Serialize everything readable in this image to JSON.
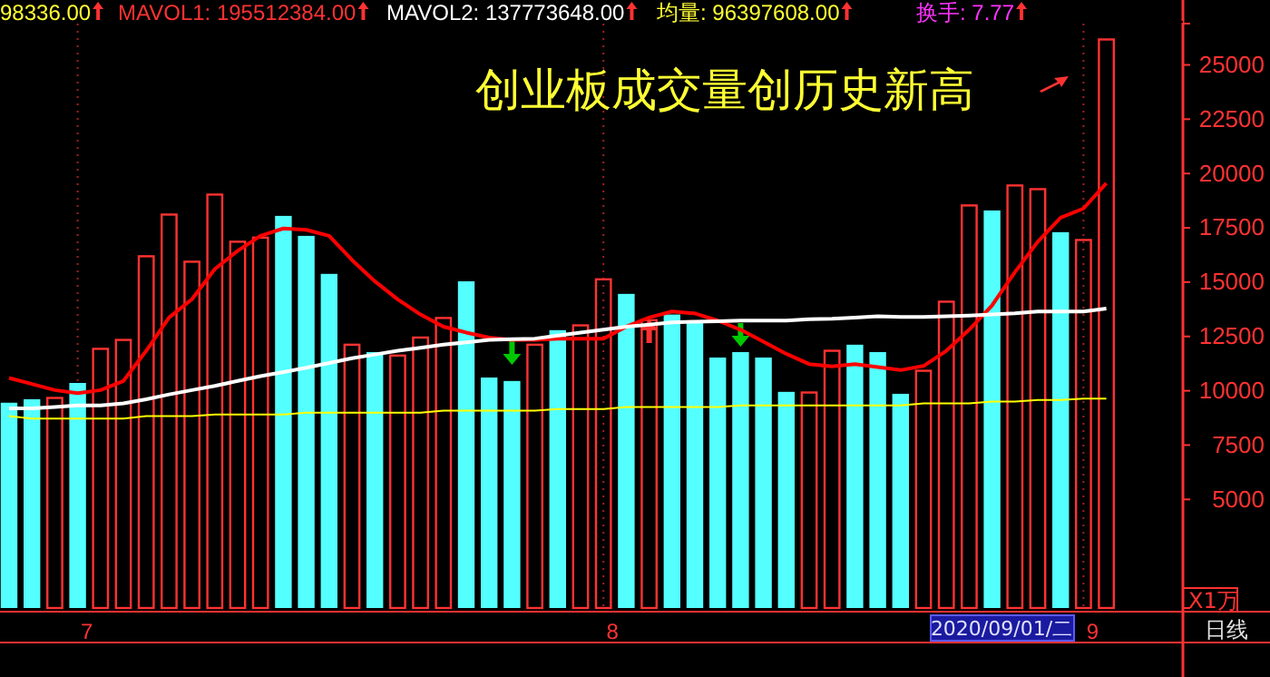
{
  "chart_data": {
    "type": "bar",
    "title": "创业板成交量创历史新高",
    "categories": [
      null,
      null,
      null,
      "7",
      null,
      null,
      null,
      null,
      null,
      null,
      null,
      null,
      null,
      null,
      null,
      null,
      null,
      null,
      null,
      null,
      null,
      null,
      null,
      null,
      null,
      null,
      "8",
      null,
      null,
      null,
      null,
      null,
      null,
      null,
      null,
      null,
      null,
      null,
      null,
      null,
      null,
      null,
      null,
      null,
      null,
      null,
      null,
      "9",
      null
    ],
    "series": [
      {
        "color": "#ff3232",
        "values": [
          null,
          null,
          9670,
          null,
          11930,
          12340,
          16190,
          18110,
          15940,
          19030,
          16860,
          17050,
          null,
          null,
          null,
          12120,
          null,
          11620,
          12450,
          13350,
          null,
          null,
          null,
          12120,
          null,
          13010,
          15130,
          null,
          13250,
          null,
          null,
          null,
          null,
          null,
          null,
          9920,
          11840,
          null,
          null,
          null,
          10920,
          14100,
          18530,
          null,
          19450,
          19280,
          null,
          16940,
          26170
        ]
      },
      {
        "color": "#54ffff",
        "values": [
          9450,
          9610,
          null,
          10360,
          null,
          null,
          null,
          null,
          null,
          null,
          null,
          null,
          18050,
          17130,
          15380,
          null,
          11780,
          null,
          null,
          null,
          15040,
          10610,
          10450,
          null,
          12790,
          null,
          null,
          14460,
          null,
          13510,
          13230,
          11530,
          11780,
          11530,
          9950,
          null,
          null,
          12120,
          11780,
          9860,
          null,
          null,
          null,
          18300,
          null,
          null,
          17300,
          null,
          null
        ]
      },
      {
        "type": "line",
        "color": "#ff0000",
        "values": [
          10590,
          10310,
          10030,
          9890,
          10030,
          10450,
          11840,
          13370,
          14210,
          15600,
          16440,
          17130,
          17470,
          17410,
          17130,
          16020,
          15040,
          14210,
          13510,
          12950,
          12680,
          12450,
          12340,
          12340,
          12400,
          12400,
          12400,
          12950,
          13370,
          13650,
          13560,
          13230,
          12810,
          12260,
          11700,
          11230,
          11120,
          11230,
          11090,
          10950,
          11140,
          11840,
          12810,
          13930,
          15460,
          16860,
          17970,
          18390,
          19550
        ]
      },
      {
        "type": "line",
        "color": "#ffffff",
        "values": [
          9190,
          9190,
          9250,
          9330,
          9330,
          9420,
          9610,
          9830,
          10030,
          10220,
          10450,
          10670,
          10860,
          11060,
          11280,
          11500,
          11670,
          11840,
          11980,
          12120,
          12230,
          12340,
          12370,
          12400,
          12540,
          12680,
          12810,
          12950,
          13040,
          13150,
          13180,
          13200,
          13230,
          13230,
          13230,
          13290,
          13310,
          13370,
          13430,
          13400,
          13400,
          13430,
          13460,
          13510,
          13560,
          13650,
          13650,
          13650,
          13780
        ]
      },
      {
        "type": "line",
        "color": "#ffff00",
        "values": [
          8830,
          8720,
          8720,
          8720,
          8720,
          8720,
          8830,
          8830,
          8830,
          8910,
          8910,
          8910,
          8910,
          8990,
          8990,
          8990,
          8990,
          8990,
          8990,
          9080,
          9080,
          9080,
          9080,
          9080,
          9160,
          9160,
          9160,
          9250,
          9250,
          9250,
          9250,
          9250,
          9330,
          9330,
          9330,
          9330,
          9330,
          9330,
          9330,
          9330,
          9420,
          9420,
          9420,
          9500,
          9500,
          9580,
          9580,
          9640,
          9640
        ]
      }
    ],
    "ylim": [
      0,
      26900
    ],
    "yticks": [
      5000,
      7500,
      10000,
      12500,
      15000,
      17500,
      20000,
      22500,
      25000
    ],
    "ylabel": "X1万",
    "grid": "x",
    "annotations": [
      "98336.00",
      "MAVOL1: 195512384.00",
      "MAVOL2: 137773648.00",
      "均量: 96397608.00",
      "换手: 7.77",
      "2020/09/01/二",
      "日线"
    ]
  }
}
